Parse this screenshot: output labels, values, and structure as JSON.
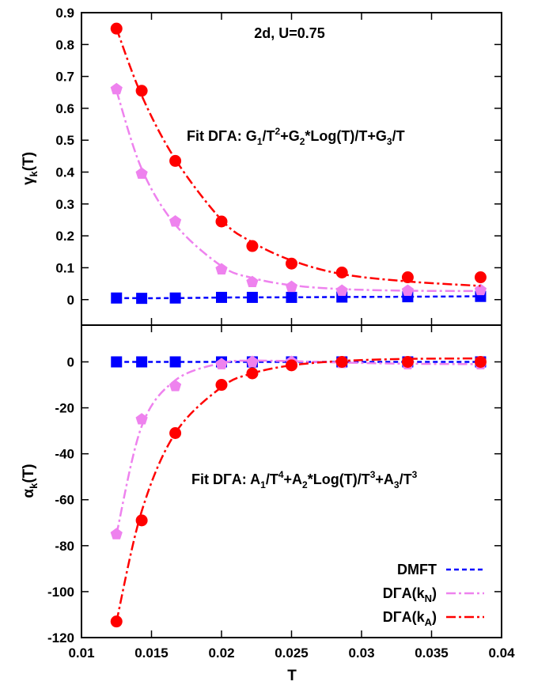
{
  "chart_data": [
    {
      "type": "line",
      "panel": "top",
      "ylabel": "γk(T)",
      "ylabel_parts": {
        "base": "γ",
        "sub": "k",
        "rest": "(T)"
      },
      "xlim": [
        0.01,
        0.04
      ],
      "ylim": [
        -0.08,
        0.9
      ],
      "yticks": [
        "0",
        "0.1",
        "0.2",
        "0.3",
        "0.4",
        "0.5",
        "0.6",
        "0.7",
        "0.8",
        "0.9"
      ],
      "ytick_values": [
        0,
        0.1,
        0.2,
        0.3,
        0.4,
        0.5,
        0.6,
        0.7,
        0.8,
        0.9
      ],
      "annotations": [
        "2d, U=0.75",
        "Fit DΓA: G1/T2+G2*Log(T)/T+G3/T"
      ],
      "series": [
        {
          "name": "DMFT",
          "color": "#0000ff",
          "marker": "square",
          "x": [
            0.0125,
            0.0143,
            0.0167,
            0.02,
            0.0222,
            0.025,
            0.0286,
            0.0333,
            0.0385
          ],
          "y": [
            0.005,
            0.004,
            0.005,
            0.007,
            0.007,
            0.007,
            0.008,
            0.009,
            0.01
          ],
          "fit": [
            0.005,
            0.0045,
            0.0048,
            0.0065,
            0.007,
            0.0072,
            0.0082,
            0.009,
            0.0105
          ]
        },
        {
          "name": "DΓA(kN)",
          "color": "#ee82ee",
          "marker": "pentagon",
          "x": [
            0.0125,
            0.0143,
            0.0167,
            0.02,
            0.0222,
            0.025,
            0.0286,
            0.0333,
            0.0385
          ],
          "y": [
            0.66,
            0.395,
            0.245,
            0.095,
            0.055,
            0.04,
            0.028,
            0.028,
            0.03
          ],
          "fit": [
            0.655,
            0.41,
            0.235,
            0.105,
            0.068,
            0.045,
            0.033,
            0.028,
            0.027
          ]
        },
        {
          "name": "DΓA(kA)",
          "color": "#ff0000",
          "marker": "circle",
          "x": [
            0.0125,
            0.0143,
            0.0167,
            0.02,
            0.0222,
            0.025,
            0.0286,
            0.0333,
            0.0385
          ],
          "y": [
            0.85,
            0.655,
            0.435,
            0.245,
            0.168,
            0.113,
            0.085,
            0.07,
            0.07
          ],
          "fit": [
            0.85,
            0.64,
            0.44,
            0.25,
            0.18,
            0.123,
            0.08,
            0.057,
            0.043
          ]
        }
      ]
    },
    {
      "type": "line",
      "panel": "bottom",
      "xlabel": "T",
      "ylabel": "αk(T)",
      "ylabel_parts": {
        "base": "α",
        "sub": "k",
        "rest": "(T)"
      },
      "xlim": [
        0.01,
        0.04
      ],
      "ylim": [
        -120,
        16
      ],
      "xticks": [
        "0.01",
        "0.015",
        "0.02",
        "0.025",
        "0.03",
        "0.035",
        "0.04"
      ],
      "xtick_values": [
        0.01,
        0.015,
        0.02,
        0.025,
        0.03,
        0.035,
        0.04
      ],
      "yticks": [
        "-120",
        "-100",
        "-80",
        "-60",
        "-40",
        "-20",
        "0"
      ],
      "ytick_values": [
        -120,
        -100,
        -80,
        -60,
        -40,
        -20,
        0
      ],
      "annotations": [
        "Fit DΓA: A1/T4+A2*Log(T)/T3+A3/T3"
      ],
      "legend_position": "bottom-right",
      "series": [
        {
          "name": "DMFT",
          "color": "#0000ff",
          "marker": "square",
          "x": [
            0.0125,
            0.0143,
            0.0167,
            0.02,
            0.0222,
            0.025,
            0.0286,
            0.0333,
            0.0385
          ],
          "y": [
            0.0,
            0.0,
            0.0,
            0.0,
            0.0,
            0.0,
            0.0,
            0.0,
            0.0
          ],
          "fit": [
            0.0,
            0.0,
            0.0,
            0.0,
            0.0,
            0.0,
            0.0,
            0.0,
            0.0
          ]
        },
        {
          "name": "DΓA(kN)",
          "color": "#ee82ee",
          "marker": "pentagon",
          "x": [
            0.0125,
            0.0143,
            0.0167,
            0.02,
            0.0222,
            0.025,
            0.0286,
            0.0333,
            0.0385
          ],
          "y": [
            -75,
            -25,
            -10.5,
            -1,
            0,
            0,
            -0.5,
            -1,
            -1
          ],
          "fit": [
            -75,
            -28,
            -8,
            -0.5,
            0.5,
            0.3,
            -0.3,
            -0.8,
            -1
          ]
        },
        {
          "name": "DΓA(kA)",
          "color": "#ff0000",
          "marker": "circle",
          "x": [
            0.0125,
            0.0143,
            0.0167,
            0.02,
            0.0222,
            0.025,
            0.0286,
            0.0333,
            0.0385
          ],
          "y": [
            -113,
            -69,
            -31,
            -10,
            -5,
            -1.5,
            0,
            0,
            0
          ],
          "fit": [
            -113,
            -65,
            -31,
            -11,
            -5,
            -1.5,
            0.4,
            1.3,
            1.5
          ]
        }
      ]
    }
  ],
  "legend": [
    {
      "label": "DMFT",
      "base": "DMFT",
      "sub": "",
      "close": "",
      "color": "#0000ff",
      "dash": "6,4"
    },
    {
      "label": "DΓA(kN)",
      "base": "DΓA(k",
      "sub": "N",
      "close": ")",
      "color": "#ee82ee",
      "dash": "12,4,3,4"
    },
    {
      "label": "DΓA(kA)",
      "base": "DΓA(k",
      "sub": "A",
      "close": ")",
      "color": "#ff0000",
      "dash": "12,4,3,4"
    }
  ]
}
